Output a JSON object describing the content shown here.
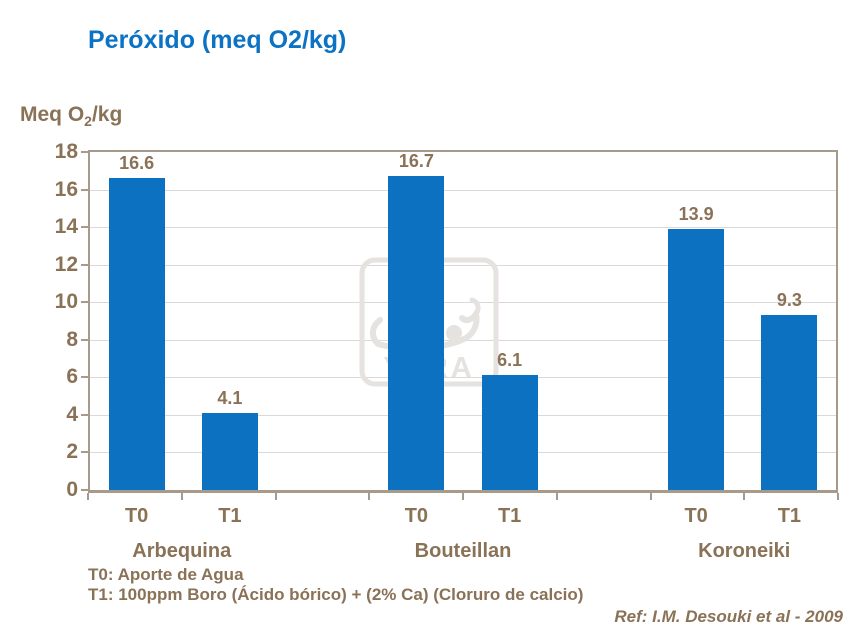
{
  "page": {
    "title": "Peróxido (meq O2/kg)",
    "footnote_t0": "T0: Aporte de Agua",
    "footnote_t1": "T1: 100ppm Boro (Ácido bórico) + (2% Ca) (Cloruro de calcio)",
    "reference": "Ref: I.M. Desouki et al - 2009"
  },
  "watermark": {
    "icon": "yara-viking-ship-logo",
    "text": "YARA",
    "color": "#e5e2df"
  },
  "chart_data": {
    "type": "bar",
    "title": "Peróxido (meq O2/kg)",
    "ylabel": "Meq O2/kg",
    "ylabel_parts": {
      "pre": "Meq O",
      "sub": "2",
      "post": "/kg"
    },
    "ylim": [
      0,
      18
    ],
    "ytick_step": 2,
    "ytick_labels": [
      "0",
      "2",
      "4",
      "6",
      "8",
      "10",
      "12",
      "14",
      "16",
      "18"
    ],
    "grid": true,
    "legend_position": "none",
    "bar_color": "#0b71c0",
    "axis_color": "#a89a8b",
    "gridline_color": "#d9d9d9",
    "text_color": "#8a7257",
    "groups": [
      {
        "label": "Arbequina",
        "bars": [
          {
            "label": "T0",
            "value": 16.6,
            "value_label": "16.6"
          },
          {
            "label": "T1",
            "value": 4.1,
            "value_label": "4.1"
          }
        ]
      },
      {
        "label": "Bouteillan",
        "bars": [
          {
            "label": "T0",
            "value": 16.7,
            "value_label": "16.7"
          },
          {
            "label": "T1",
            "value": 6.1,
            "value_label": "6.1"
          }
        ]
      },
      {
        "label": "Koroneiki",
        "bars": [
          {
            "label": "T0",
            "value": 13.9,
            "value_label": "13.9"
          },
          {
            "label": "T1",
            "value": 9.3,
            "value_label": "9.3"
          }
        ]
      }
    ]
  }
}
